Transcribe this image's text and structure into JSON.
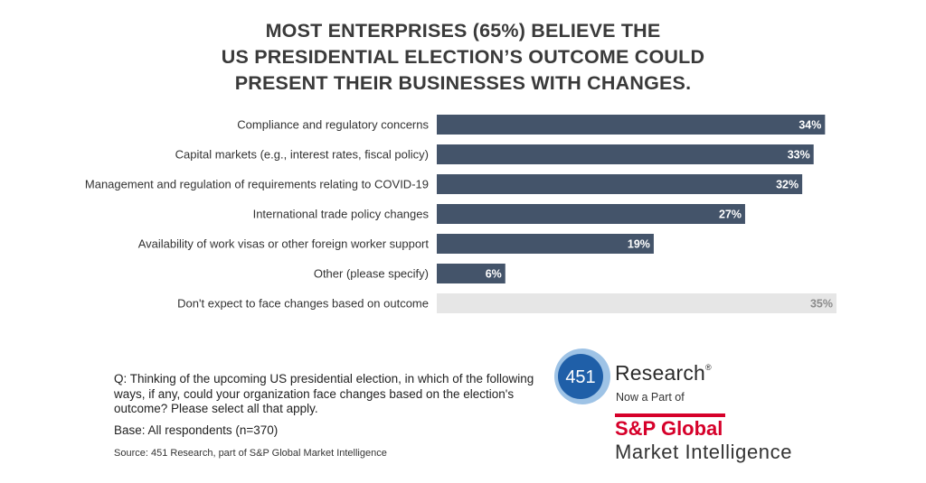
{
  "title_lines": [
    "MOST ENTERPRISES (65%) BELIEVE THE",
    "US PRESIDENTIAL ELECTION’S OUTCOME COULD",
    "PRESENT THEIR BUSINESSES WITH CHANGES."
  ],
  "chart_data": {
    "type": "bar",
    "orientation": "horizontal",
    "title": "MOST ENTERPRISES (65%) BELIEVE THE US PRESIDENTIAL ELECTION’S OUTCOME COULD PRESENT THEIR BUSINESSES WITH CHANGES.",
    "categories": [
      "Compliance and regulatory concerns",
      "Capital markets (e.g., interest rates, fiscal policy)",
      "Management and regulation of requirements relating to COVID-19",
      "International trade policy changes",
      "Availability of work visas or other foreign worker support",
      "Other (please specify)",
      "Don't expect to face changes based on outcome"
    ],
    "values": [
      34,
      33,
      32,
      27,
      19,
      6,
      35
    ],
    "value_labels": [
      "34%",
      "33%",
      "32%",
      "27%",
      "19%",
      "6%",
      "35%"
    ],
    "bar_colors": [
      "#44546a",
      "#44546a",
      "#44546a",
      "#44546a",
      "#44546a",
      "#44546a",
      "#e6e6e6"
    ],
    "label_colors": [
      "#ffffff",
      "#ffffff",
      "#ffffff",
      "#ffffff",
      "#ffffff",
      "#ffffff",
      "#8c8c8c"
    ],
    "xlim": [
      0,
      35
    ],
    "xlabel": "",
    "ylabel": "",
    "grid": false,
    "legend": "none"
  },
  "footer": {
    "question": "Q: Thinking of the upcoming US presidential election, in which of the following ways, if any, could your organization face changes based on the election's outcome? Please select all that apply.",
    "base": "Base: All respondents (n=370)",
    "source": "Source: 451 Research, part of S&P Global Market Intelligence"
  },
  "logo": {
    "badge": "451",
    "research": "Research",
    "registered": "®",
    "now_part": "Now a Part of",
    "sp_global": "S&P Global",
    "market_intelligence": "Market Intelligence"
  }
}
